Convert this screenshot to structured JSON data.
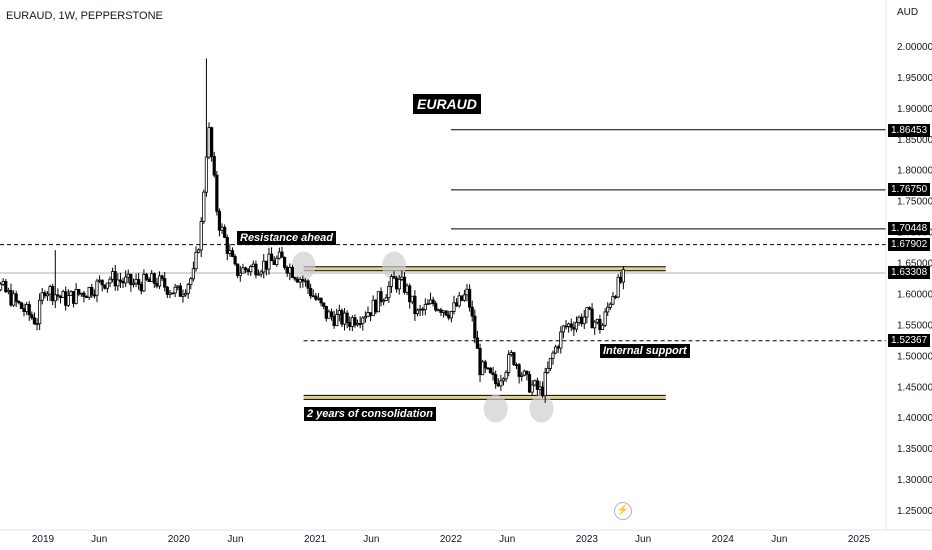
{
  "header": {
    "symbol": "EURAUD, 1W, PEPPERSTONE",
    "currency": "AUD"
  },
  "annotations": {
    "title": "EURAUD",
    "resistance": "Resistance ahead",
    "support": "Internal support",
    "consolidation": "2 years of consolidation"
  },
  "price_tags": {
    "t1": "1.86453",
    "t2": "1.76750",
    "t3": "1.70448",
    "t4": "1.67902",
    "current": "1.63308",
    "support": "1.52367"
  },
  "chart_data": {
    "type": "candlestick",
    "title": "",
    "xlabel": "",
    "ylabel": "",
    "ylim": [
      1.22,
      2.06
    ],
    "y_ticks": [
      "2.00000",
      "1.95000",
      "1.90000",
      "1.85000",
      "1.80000",
      "1.75000",
      "1.70000",
      "1.65000",
      "1.60000",
      "1.55000",
      "1.50000",
      "1.45000",
      "1.40000",
      "1.35000",
      "1.30000",
      "1.25000"
    ],
    "x_ticks": [
      {
        "label": "2019",
        "date": "2019-01-01"
      },
      {
        "label": "Jun",
        "date": "2019-06-01"
      },
      {
        "label": "2020",
        "date": "2020-01-01"
      },
      {
        "label": "Jun",
        "date": "2020-06-01"
      },
      {
        "label": "2021",
        "date": "2021-01-01"
      },
      {
        "label": "Jun",
        "date": "2021-06-01"
      },
      {
        "label": "2022",
        "date": "2022-01-01"
      },
      {
        "label": "Jun",
        "date": "2022-06-01"
      },
      {
        "label": "2023",
        "date": "2023-01-01"
      },
      {
        "label": "Jun",
        "date": "2023-06-01"
      },
      {
        "label": "2024",
        "date": "2024-01-01"
      },
      {
        "label": "Jun",
        "date": "2024-06-01"
      },
      {
        "label": "2025",
        "date": "2025-01-01"
      }
    ],
    "price_path": [
      {
        "date": "2018-07-01",
        "close": 1.625
      },
      {
        "date": "2018-09-01",
        "close": 1.615
      },
      {
        "date": "2018-10-20",
        "close": 1.585
      },
      {
        "date": "2018-12-15",
        "close": 1.555
      },
      {
        "date": "2019-01-05",
        "close": 1.61
      },
      {
        "date": "2019-03-01",
        "close": 1.59
      },
      {
        "date": "2019-05-01",
        "close": 1.605
      },
      {
        "date": "2019-07-01",
        "close": 1.625
      },
      {
        "date": "2019-09-01",
        "close": 1.615
      },
      {
        "date": "2019-11-01",
        "close": 1.62
      },
      {
        "date": "2020-01-01",
        "close": 1.6
      },
      {
        "date": "2020-02-10",
        "close": 1.63
      },
      {
        "date": "2020-03-01",
        "close": 1.71
      },
      {
        "date": "2020-03-15",
        "close": 1.83
      },
      {
        "date": "2020-03-22",
        "close": 1.86
      },
      {
        "date": "2020-04-15",
        "close": 1.72
      },
      {
        "date": "2020-06-01",
        "close": 1.635
      },
      {
        "date": "2020-08-01",
        "close": 1.645
      },
      {
        "date": "2020-10-01",
        "close": 1.655
      },
      {
        "date": "2020-12-01",
        "close": 1.62
      },
      {
        "date": "2021-02-01",
        "close": 1.565
      },
      {
        "date": "2021-04-01",
        "close": 1.555
      },
      {
        "date": "2021-06-01",
        "close": 1.575
      },
      {
        "date": "2021-08-01",
        "close": 1.62
      },
      {
        "date": "2021-09-01",
        "close": 1.61
      },
      {
        "date": "2021-10-01",
        "close": 1.565
      },
      {
        "date": "2021-11-15",
        "close": 1.585
      },
      {
        "date": "2022-01-01",
        "close": 1.57
      },
      {
        "date": "2022-02-15",
        "close": 1.6
      },
      {
        "date": "2022-03-20",
        "close": 1.48
      },
      {
        "date": "2022-05-01",
        "close": 1.455
      },
      {
        "date": "2022-06-15",
        "close": 1.5
      },
      {
        "date": "2022-07-25",
        "close": 1.455
      },
      {
        "date": "2022-09-01",
        "close": 1.44
      },
      {
        "date": "2022-10-01",
        "close": 1.5
      },
      {
        "date": "2022-11-01",
        "close": 1.545
      },
      {
        "date": "2023-01-01",
        "close": 1.565
      },
      {
        "date": "2023-02-10",
        "close": 1.545
      },
      {
        "date": "2023-03-10",
        "close": 1.6
      },
      {
        "date": "2023-04-15",
        "close": 1.63
      }
    ],
    "spike_highs": [
      {
        "date": "2019-02-01",
        "high": 1.67
      },
      {
        "date": "2020-03-15",
        "high": 1.98
      }
    ],
    "horizontal_levels": [
      {
        "price": 1.86453,
        "style": "solid",
        "from": "2022-01-01"
      },
      {
        "price": 1.7675,
        "style": "solid",
        "from": "2022-01-01"
      },
      {
        "price": 1.70448,
        "style": "solid",
        "from": "2022-01-01"
      },
      {
        "price": 1.67902,
        "style": "dashed",
        "from": "2018-07-01"
      },
      {
        "price": 1.63308,
        "style": "current",
        "from": "2018-07-01"
      },
      {
        "price": 1.52367,
        "style": "dashed",
        "from": "2020-12-01"
      }
    ],
    "zones": [
      {
        "price": 1.64,
        "style": "resistance",
        "from": "2020-12-01",
        "to": "2023-08-01"
      },
      {
        "price": 1.432,
        "style": "support",
        "from": "2020-12-01",
        "to": "2023-08-01"
      }
    ],
    "touch_points": [
      {
        "date": "2020-12-01",
        "price": 1.645
      },
      {
        "date": "2021-08-01",
        "price": 1.645
      },
      {
        "date": "2022-05-01",
        "price": 1.43
      },
      {
        "date": "2022-09-01",
        "price": 1.43
      }
    ],
    "colors": {
      "up": "#000000",
      "down": "#000000",
      "wick": "#000000",
      "level": "#000000",
      "zone_fill": "#d4c05a",
      "touch": "#cfcfcf"
    },
    "grid": false,
    "legend": "none"
  }
}
